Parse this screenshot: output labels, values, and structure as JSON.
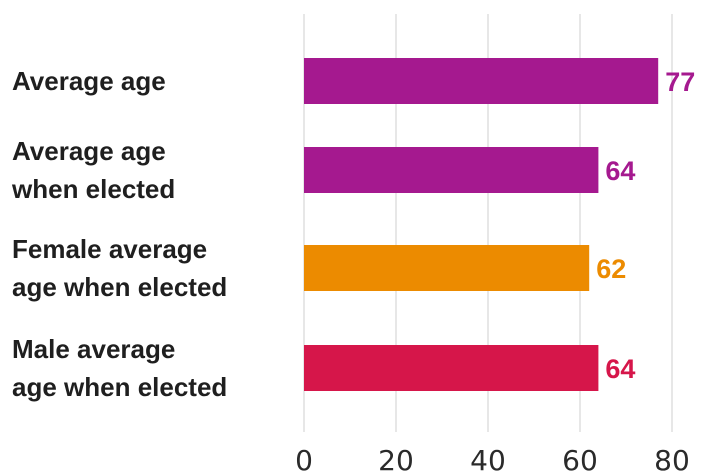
{
  "chart_data": {
    "type": "bar",
    "orientation": "horizontal",
    "categories": [
      [
        "Average age"
      ],
      [
        "Average age",
        "when elected"
      ],
      [
        "Female average",
        "age when elected"
      ],
      [
        "Male average",
        "age when elected"
      ]
    ],
    "values": [
      77,
      64,
      62,
      64
    ],
    "colors": [
      "#a5198f",
      "#a5198f",
      "#ec8b00",
      "#d6164a"
    ],
    "xlim": [
      0,
      80
    ],
    "xticks": [
      "0",
      "20",
      "40",
      "60",
      "80"
    ],
    "grid": true,
    "legend": "none"
  }
}
